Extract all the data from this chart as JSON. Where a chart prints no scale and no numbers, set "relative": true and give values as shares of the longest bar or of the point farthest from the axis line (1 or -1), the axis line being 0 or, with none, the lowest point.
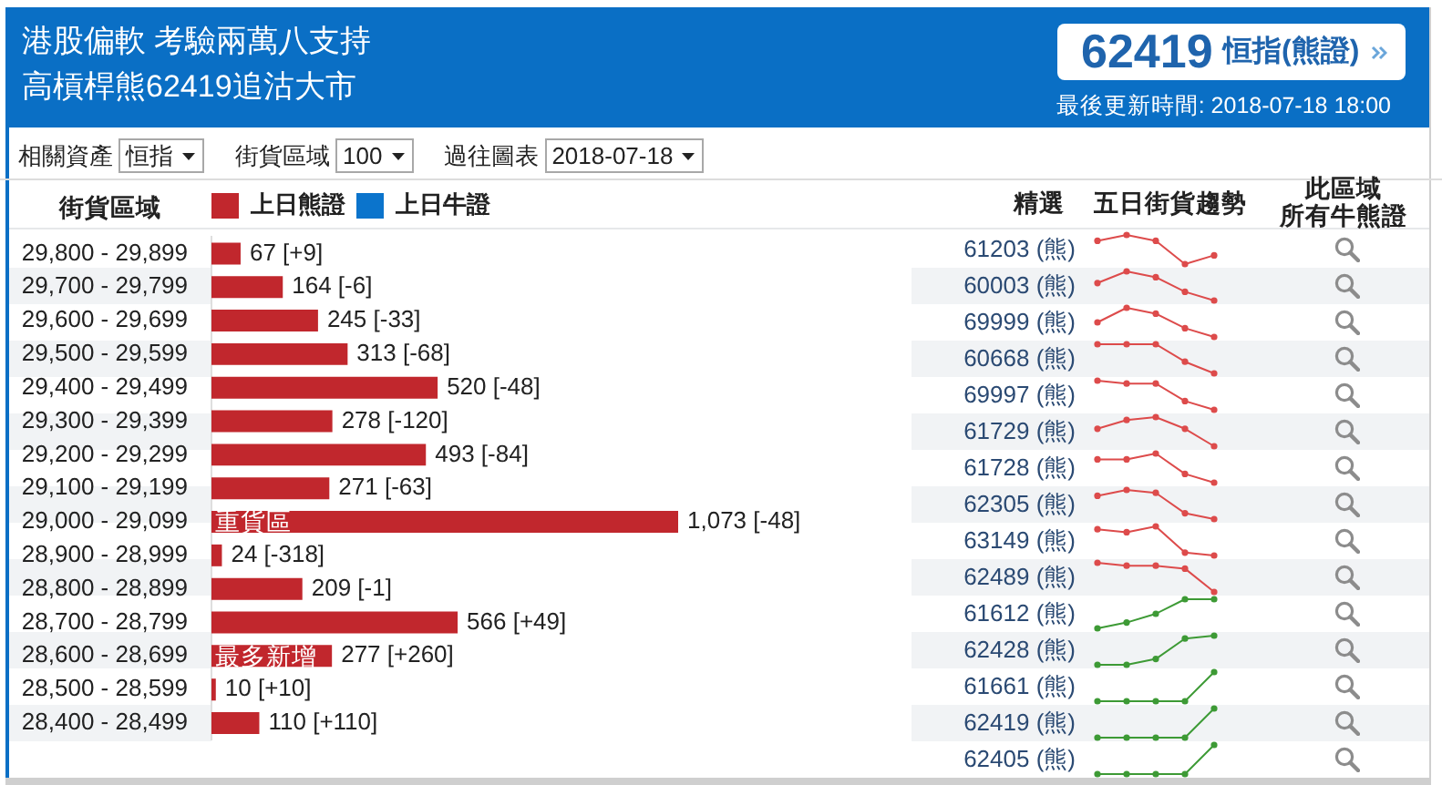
{
  "chart_data": [
    {
      "type": "other",
      "title": "港股偏軟 考驗兩萬八支持",
      "subtitle": "高槓桿熊62419追沽大市",
      "annotations": [
        "62419",
        "恒指(熊證)",
        "最後更新時間: 2018-07-18 18:00",
        "相關資產",
        "恒指",
        "街貨區域",
        "100",
        "過往圖表",
        "2018-07-18"
      ]
    },
    {
      "type": "bar",
      "orientation": "horizontal",
      "ylabel": "街貨區域",
      "legend": "top left",
      "tick_labels": "y",
      "categories": [
        "29,800 - 29,899",
        "29,700 - 29,799",
        "29,600 - 29,699",
        "29,500 - 29,599",
        "29,400 - 29,499",
        "29,300 - 29,399",
        "29,200 - 29,299",
        "29,100 - 29,199",
        "29,000 - 29,099",
        "28,900 - 28,999",
        "28,800 - 28,899",
        "28,700 - 28,799",
        "28,600 - 28,699",
        "28,500 - 28,599",
        "28,400 - 28,499"
      ],
      "series": [
        {
          "name": "上日熊證",
          "color": "#c1272d",
          "values": [
            67,
            164,
            245,
            313,
            520,
            278,
            493,
            271,
            1073,
            24,
            209,
            566,
            277,
            10,
            110
          ],
          "value_labels": [
            "67 [+9]",
            "164 [-6]",
            "245 [-33]",
            "313 [-68]",
            "520 [-48]",
            "278 [-120]",
            "493 [-84]",
            "271 [-63]",
            "1,073 [-48]",
            "24 [-318]",
            "209 [-1]",
            "566 [+49]",
            "277 [+260]",
            "10 [+10]",
            "110 [+110]"
          ]
        },
        {
          "name": "上日牛證",
          "color": "#0b74cc",
          "values": [
            null,
            null,
            null,
            null,
            null,
            null,
            null,
            null,
            null,
            null,
            null,
            null,
            null,
            null,
            null
          ]
        }
      ],
      "annotations": [
        {
          "text": "重貨區",
          "y": "29,000 - 29,099"
        },
        {
          "text": "最多新增",
          "y": "28,600 - 28,699"
        }
      ]
    },
    {
      "type": "other",
      "annotations": [
        "精選",
        "五日街貨趨勢",
        "此區域",
        "所有牛熊證",
        "61203 (熊)",
        "60003 (熊)",
        "69999 (熊)",
        "60668 (熊)",
        "69997 (熊)",
        "61729 (熊)",
        "61728 (熊)",
        "62305 (熊)",
        "63149 (熊)",
        "62489 (熊)",
        "61612 (熊)",
        "62428 (熊)",
        "61661 (熊)",
        "62419 (熊)",
        "62405 (熊)"
      ]
    },
    {
      "type": "line",
      "relative": true,
      "tick_labels": false,
      "marker": "circle",
      "categories": [
        null,
        null,
        null,
        null,
        null
      ],
      "values": [
        0.8,
        1,
        0.8,
        0,
        0.3
      ],
      "color": "#dd4b4b"
    },
    {
      "type": "line",
      "relative": true,
      "tick_labels": false,
      "marker": "circle",
      "categories": [
        null,
        null,
        null,
        null,
        null
      ],
      "values": [
        0.6,
        1,
        0.8,
        0.3,
        0
      ],
      "color": "#dd4b4b"
    },
    {
      "type": "line",
      "relative": true,
      "tick_labels": false,
      "marker": "circle",
      "categories": [
        null,
        null,
        null,
        null,
        null
      ],
      "values": [
        0.5,
        1,
        0.8,
        0.3,
        0
      ],
      "color": "#dd4b4b"
    },
    {
      "type": "line",
      "relative": true,
      "tick_labels": false,
      "marker": "circle",
      "categories": [
        null,
        null,
        null,
        null,
        null
      ],
      "values": [
        1,
        1,
        1,
        0.4,
        0
      ],
      "color": "#dd4b4b"
    },
    {
      "type": "line",
      "relative": true,
      "tick_labels": false,
      "marker": "circle",
      "categories": [
        null,
        null,
        null,
        null,
        null
      ],
      "values": [
        1,
        0.9,
        0.9,
        0.3,
        0
      ],
      "color": "#dd4b4b"
    },
    {
      "type": "line",
      "relative": true,
      "tick_labels": false,
      "marker": "circle",
      "categories": [
        null,
        null,
        null,
        null,
        null
      ],
      "values": [
        0.6,
        0.9,
        1,
        0.6,
        0
      ],
      "color": "#dd4b4b"
    },
    {
      "type": "line",
      "relative": true,
      "tick_labels": false,
      "marker": "circle",
      "categories": [
        null,
        null,
        null,
        null,
        null
      ],
      "values": [
        0.8,
        0.8,
        1,
        0.3,
        0
      ],
      "color": "#dd4b4b"
    },
    {
      "type": "line",
      "relative": true,
      "tick_labels": false,
      "marker": "circle",
      "categories": [
        null,
        null,
        null,
        null,
        null
      ],
      "values": [
        0.8,
        1,
        0.9,
        0.2,
        0
      ],
      "color": "#dd4b4b"
    },
    {
      "type": "line",
      "relative": true,
      "tick_labels": false,
      "marker": "circle",
      "categories": [
        null,
        null,
        null,
        null,
        null
      ],
      "values": [
        0.9,
        0.8,
        1,
        0.1,
        0
      ],
      "color": "#dd4b4b"
    },
    {
      "type": "line",
      "relative": true,
      "tick_labels": false,
      "marker": "circle",
      "categories": [
        null,
        null,
        null,
        null,
        null
      ],
      "values": [
        1,
        0.9,
        0.9,
        0.8,
        0
      ],
      "color": "#dd4b4b"
    },
    {
      "type": "line",
      "relative": true,
      "tick_labels": false,
      "marker": "circle",
      "categories": [
        null,
        null,
        null,
        null,
        null
      ],
      "values": [
        0,
        0.2,
        0.5,
        1,
        1
      ],
      "color": "#3d9a35"
    },
    {
      "type": "line",
      "relative": true,
      "tick_labels": false,
      "marker": "circle",
      "categories": [
        null,
        null,
        null,
        null,
        null
      ],
      "values": [
        0,
        0,
        0.2,
        0.9,
        1
      ],
      "color": "#3d9a35"
    },
    {
      "type": "line",
      "relative": true,
      "tick_labels": false,
      "marker": "circle",
      "categories": [
        null,
        null,
        null,
        null,
        null
      ],
      "values": [
        0,
        0,
        0,
        0,
        1
      ],
      "color": "#3d9a35"
    },
    {
      "type": "line",
      "relative": true,
      "tick_labels": false,
      "marker": "circle",
      "categories": [
        null,
        null,
        null,
        null,
        null
      ],
      "values": [
        0,
        0,
        0,
        0,
        1
      ],
      "color": "#3d9a35"
    },
    {
      "type": "line",
      "relative": true,
      "tick_labels": false,
      "marker": "circle",
      "categories": [
        null,
        null,
        null,
        null,
        null
      ],
      "values": [
        0,
        0,
        0,
        0,
        1
      ],
      "color": "#3d9a35"
    }
  ]
}
